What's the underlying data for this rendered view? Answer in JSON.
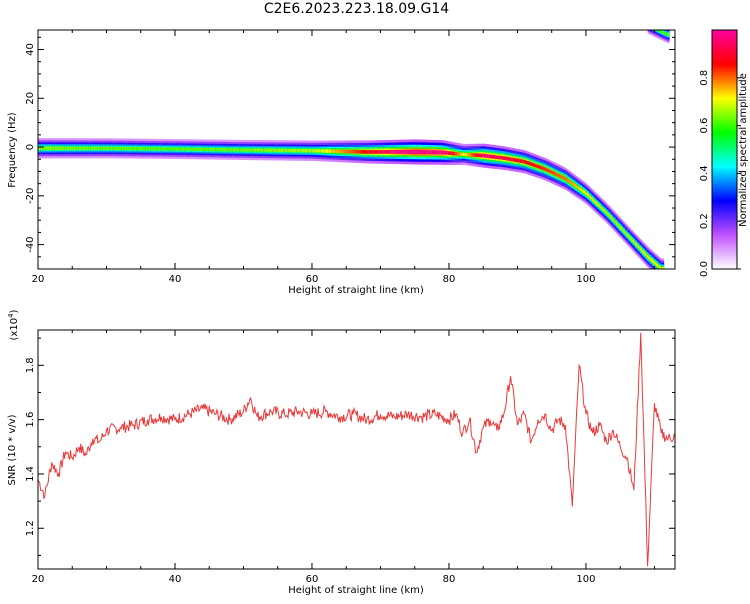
{
  "title": "C2E6.2023.223.18.09.G14",
  "chart_data": [
    {
      "type": "heatmap",
      "xlabel": "Height of straight line (km)",
      "ylabel": "Frequency (Hz)",
      "xlim": [
        20,
        113
      ],
      "ylim": [
        -50,
        48
      ],
      "x_ticks": [
        20,
        40,
        60,
        80,
        100
      ],
      "y_ticks": [
        -40,
        -20,
        0,
        20,
        40
      ],
      "grid": false,
      "colorbar": {
        "label": "Normalized spectral amplitude",
        "range": [
          0,
          1
        ],
        "ticks": [
          "0.0",
          "0.2",
          "0.4",
          "0.6",
          "0.8"
        ],
        "colors": [
          "#ffffff",
          "#c050ff",
          "#0000ff",
          "#00ffff",
          "#00ff00",
          "#ffff00",
          "#ff0000",
          "#ff00a0"
        ]
      },
      "ridge": [
        {
          "x": 20,
          "y": -0.5,
          "amp": 0.48
        },
        {
          "x": 30,
          "y": -0.5,
          "amp": 0.45
        },
        {
          "x": 40,
          "y": -0.8,
          "amp": 0.44
        },
        {
          "x": 50,
          "y": -1.2,
          "amp": 0.46
        },
        {
          "x": 60,
          "y": -1.5,
          "amp": 0.5
        },
        {
          "x": 68,
          "y": -2.0,
          "amp": 0.75
        },
        {
          "x": 75,
          "y": -2.0,
          "amp": 0.95
        },
        {
          "x": 79,
          "y": -2.2,
          "amp": 0.9
        },
        {
          "x": 82,
          "y": -3.0,
          "amp": 0.55
        },
        {
          "x": 85,
          "y": -3.5,
          "amp": 0.85
        },
        {
          "x": 88,
          "y": -4.5,
          "amp": 0.8
        },
        {
          "x": 91,
          "y": -6.0,
          "amp": 0.75
        },
        {
          "x": 94,
          "y": -9.0,
          "amp": 0.7
        },
        {
          "x": 97,
          "y": -13.0,
          "amp": 0.65
        },
        {
          "x": 100,
          "y": -19.0,
          "amp": 0.55
        },
        {
          "x": 103,
          "y": -27.0,
          "amp": 0.5
        },
        {
          "x": 106,
          "y": -36.0,
          "amp": 0.5
        },
        {
          "x": 109,
          "y": -45.0,
          "amp": 0.55
        },
        {
          "x": 111,
          "y": -50.0,
          "amp": 0.55
        }
      ],
      "alias_ridge": [
        {
          "x": 109,
          "y": 50,
          "amp": 0.4
        },
        {
          "x": 112,
          "y": 46,
          "amp": 0.45
        }
      ]
    },
    {
      "type": "line",
      "xlabel": "Height of straight line (km)",
      "ylabel": "SNR (10 * v/v)",
      "y_multiplier": "(x10",
      "y_multiplier_exp": "4",
      "y_multiplier_close": ")",
      "xlim": [
        20,
        113
      ],
      "ylim": [
        1.05,
        1.93
      ],
      "x_ticks": [
        20,
        40,
        60,
        80,
        100
      ],
      "y_ticks": [
        1.2,
        1.4,
        1.6,
        1.8
      ],
      "grid": false,
      "color": "#e83a3a",
      "series": [
        {
          "x": [
            20,
            21,
            22,
            23,
            24,
            25,
            26,
            27,
            28,
            29,
            30,
            32,
            34,
            36,
            38,
            40,
            42,
            44,
            46,
            48,
            50,
            51,
            52,
            54,
            56,
            58,
            60,
            62,
            64,
            66,
            68,
            70,
            72,
            74,
            76,
            78,
            80,
            81,
            82,
            83,
            84,
            85,
            86,
            87,
            88,
            89,
            90,
            91,
            92,
            93,
            94,
            95,
            96,
            97,
            98,
            99,
            100,
            101,
            102,
            103,
            104,
            105,
            106,
            107,
            108,
            109,
            110,
            111,
            112,
            113
          ],
          "y": [
            1.38,
            1.32,
            1.44,
            1.4,
            1.48,
            1.46,
            1.5,
            1.47,
            1.53,
            1.52,
            1.56,
            1.57,
            1.58,
            1.6,
            1.61,
            1.6,
            1.62,
            1.64,
            1.62,
            1.6,
            1.63,
            1.68,
            1.61,
            1.63,
            1.62,
            1.63,
            1.62,
            1.63,
            1.61,
            1.62,
            1.6,
            1.62,
            1.61,
            1.62,
            1.61,
            1.62,
            1.6,
            1.62,
            1.55,
            1.6,
            1.48,
            1.57,
            1.6,
            1.56,
            1.62,
            1.76,
            1.58,
            1.62,
            1.52,
            1.6,
            1.62,
            1.56,
            1.6,
            1.58,
            1.28,
            1.8,
            1.62,
            1.55,
            1.58,
            1.52,
            1.56,
            1.5,
            1.46,
            1.34,
            1.92,
            1.06,
            1.66,
            1.55,
            1.53,
            1.54
          ]
        }
      ]
    }
  ]
}
